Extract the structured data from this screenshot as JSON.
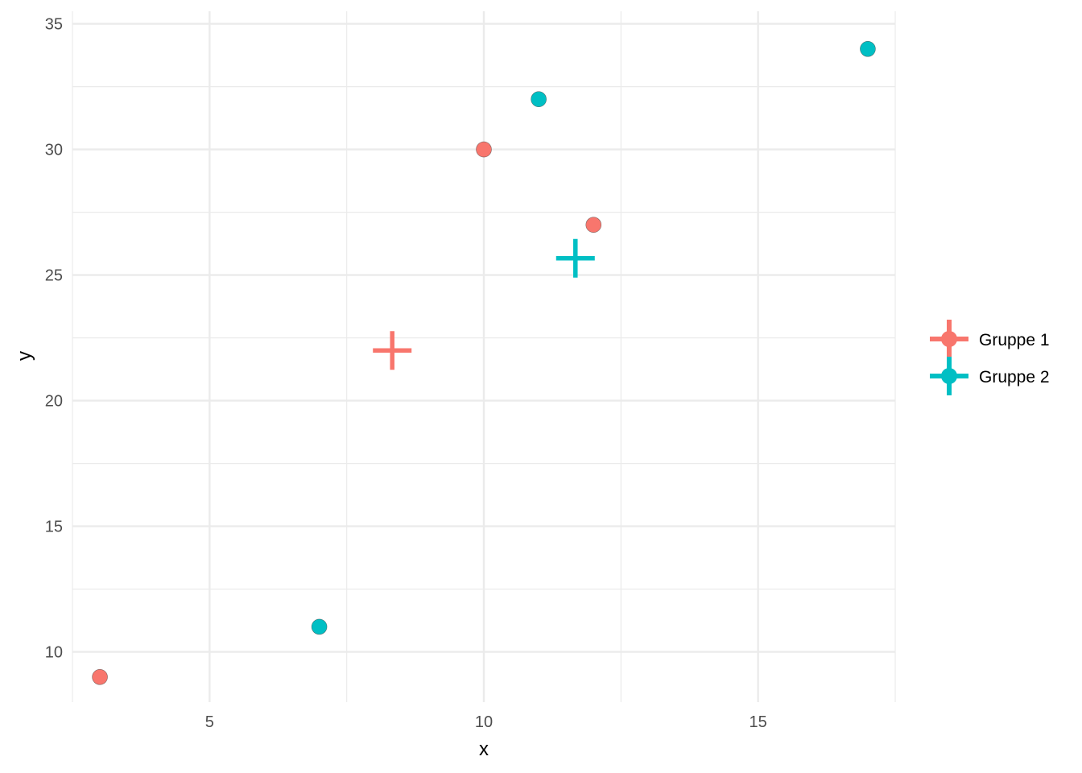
{
  "chart_data": {
    "type": "scatter",
    "xlabel": "x",
    "ylabel": "y",
    "xlim": [
      2.5,
      17.5
    ],
    "ylim": [
      8,
      35.5
    ],
    "x_ticks": [
      5,
      10,
      15
    ],
    "x_tick_labels": [
      "5",
      "10",
      "15"
    ],
    "y_ticks": [
      10,
      15,
      20,
      25,
      30,
      35
    ],
    "y_tick_labels": [
      "10",
      "15",
      "20",
      "25",
      "30",
      "35"
    ],
    "x_minor_ticks": [
      2.5,
      7.5,
      12.5,
      17.5
    ],
    "y_minor_ticks": [
      12.5,
      17.5,
      22.5,
      27.5,
      32.5
    ],
    "grid": true,
    "legend_position": "right",
    "series": [
      {
        "name": "Gruppe 1",
        "color": "#F8766D",
        "points": [
          {
            "x": 3,
            "y": 9
          },
          {
            "x": 10,
            "y": 30
          },
          {
            "x": 12,
            "y": 27
          }
        ],
        "centroid": {
          "x": 8.33,
          "y": 22
        }
      },
      {
        "name": "Gruppe 2",
        "color": "#00BFC4",
        "points": [
          {
            "x": 7,
            "y": 11
          },
          {
            "x": 11,
            "y": 32
          },
          {
            "x": 17,
            "y": 34
          }
        ],
        "centroid": {
          "x": 11.67,
          "y": 25.67
        }
      }
    ]
  }
}
